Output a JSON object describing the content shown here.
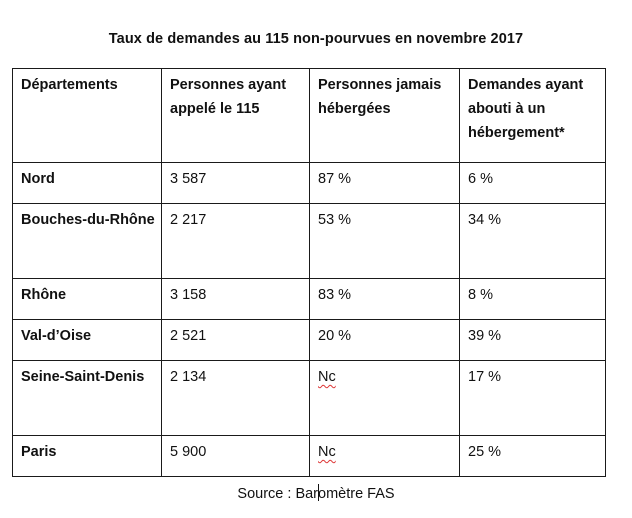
{
  "title": "Taux de demandes au 115 non-pourvues en novembre 2017",
  "table": {
    "headers": [
      "Départements",
      "Personnes ayant appelé le 115",
      "Personnes jamais hébergées",
      "Demandes ayant abouti à un hébergement*"
    ],
    "rows": [
      [
        "Nord",
        "3 587",
        "87 %",
        "6 %"
      ],
      [
        "Bouches-du-Rhône",
        "2 217",
        "53 %",
        "34 %"
      ],
      [
        "Rhône",
        "3 158",
        "83 %",
        "8 %"
      ],
      [
        "Val-d’Oise",
        "2 521",
        "20 %",
        "39 %"
      ],
      [
        "Seine-Saint-Denis",
        "2 134",
        "Nc",
        "17 %"
      ],
      [
        "Paris",
        "5 900",
        "Nc",
        "25 %"
      ]
    ]
  },
  "source": {
    "before_cursor": "Source : Bar",
    "after_cursor": "omètre FAS"
  }
}
